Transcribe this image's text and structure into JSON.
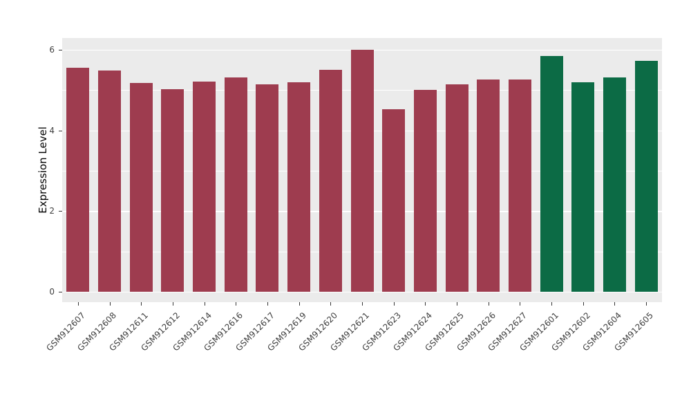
{
  "chart_data": {
    "type": "bar",
    "title": "",
    "xlabel": "",
    "ylabel": "Expression Level",
    "ylim": [
      0,
      6
    ],
    "yticks": [
      0,
      2,
      4,
      6
    ],
    "minor_yticks": [
      1,
      3,
      5
    ],
    "categories": [
      "GSM912607",
      "GSM912608",
      "GSM912611",
      "GSM912612",
      "GSM912614",
      "GSM912616",
      "GSM912617",
      "GSM912619",
      "GSM912620",
      "GSM912621",
      "GSM912623",
      "GSM912624",
      "GSM912625",
      "GSM912626",
      "GSM912627",
      "GSM912601",
      "GSM912602",
      "GSM912604",
      "GSM912605"
    ],
    "values": [
      5.55,
      5.48,
      5.18,
      5.03,
      5.21,
      5.32,
      5.14,
      5.2,
      5.5,
      6.0,
      4.53,
      5.0,
      5.15,
      5.26,
      5.27,
      5.84,
      5.19,
      5.31,
      5.72
    ],
    "groups": [
      "red",
      "red",
      "red",
      "red",
      "red",
      "red",
      "red",
      "red",
      "red",
      "red",
      "red",
      "red",
      "red",
      "red",
      "red",
      "green",
      "green",
      "green",
      "green"
    ],
    "colors": {
      "red": "#9e3c4f",
      "green": "#0c6b45"
    },
    "panel_background": "#ebebeb",
    "grid_color": "#ffffff",
    "axis_text_color": "#404040",
    "legend": "none"
  }
}
